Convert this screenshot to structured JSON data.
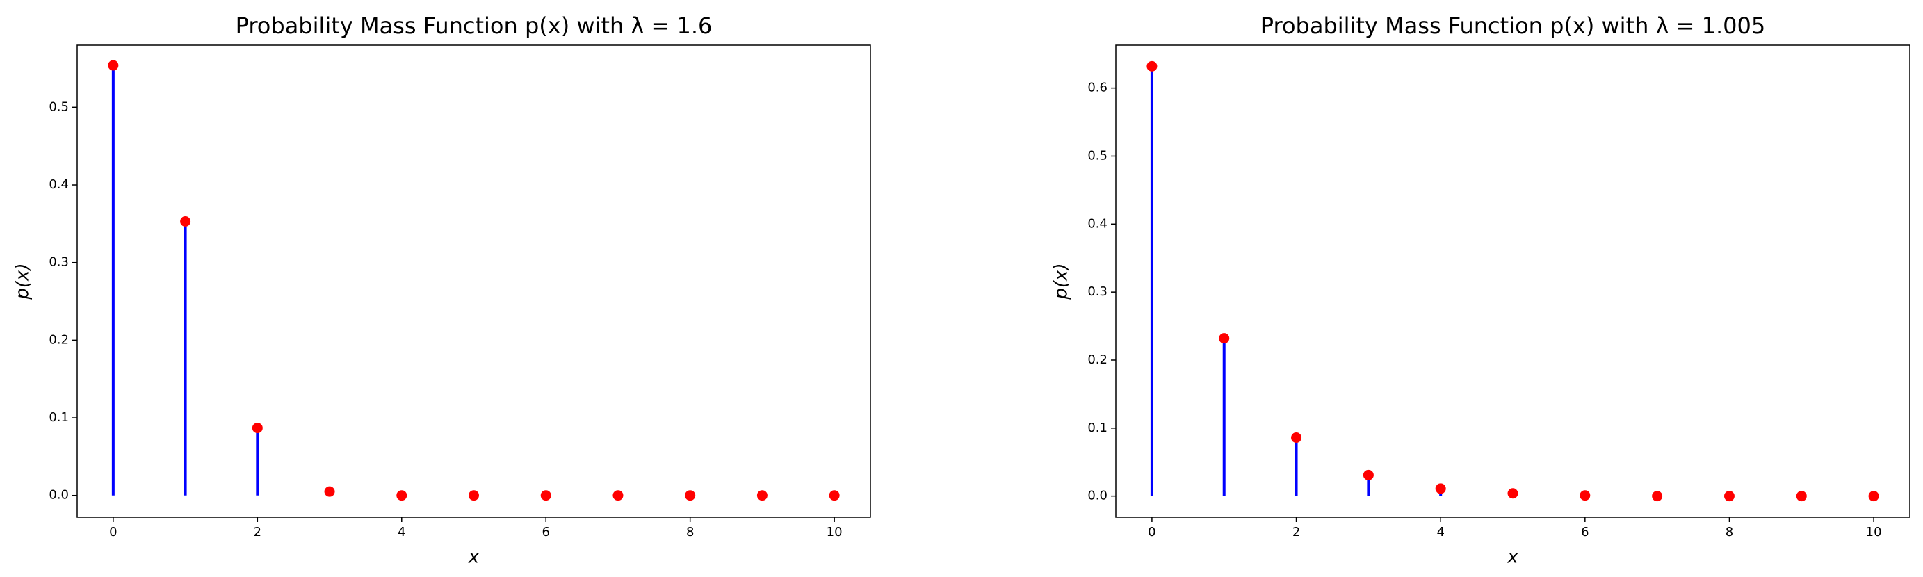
{
  "chart_data": [
    {
      "type": "stem",
      "title": "Probability Mass Function p(x) with λ = 1.6",
      "xlabel": "x",
      "ylabel": "p(x)",
      "x": [
        0,
        1,
        2,
        3,
        4,
        5,
        6,
        7,
        8,
        9,
        10
      ],
      "values": [
        0.554,
        0.353,
        0.087,
        0.005,
        0.0,
        0.0,
        0.0,
        0.0,
        0.0,
        0.0,
        0.0
      ],
      "line_color": "#0000ff",
      "marker_color": "#ff0000",
      "xlim": [
        -0.5,
        10.5
      ],
      "xticks": [
        0,
        2,
        4,
        6,
        8,
        10
      ],
      "ylim": [
        -0.028,
        0.58
      ],
      "yticks": [
        {
          "value": 0,
          "label": "0.0"
        },
        0.1,
        0.2,
        0.3,
        0.4,
        0.5
      ]
    },
    {
      "type": "stem",
      "title": "Probability Mass Function p(x) with λ = 1.005",
      "xlabel": "x",
      "ylabel": "p(x)",
      "x": [
        0,
        1,
        2,
        3,
        4,
        5,
        6,
        7,
        8,
        9,
        10
      ],
      "values": [
        0.632,
        0.232,
        0.086,
        0.031,
        0.011,
        0.004,
        0.001,
        0.0,
        0.0,
        0.0,
        0.0
      ],
      "line_color": "#0000ff",
      "marker_color": "#ff0000",
      "xlim": [
        -0.5,
        10.5
      ],
      "xticks": [
        0,
        2,
        4,
        6,
        8,
        10
      ],
      "ylim": [
        -0.031,
        0.663
      ],
      "yticks": [
        {
          "value": 0,
          "label": "0.0"
        },
        0.1,
        0.2,
        0.3,
        0.4,
        0.5,
        0.6
      ]
    }
  ]
}
